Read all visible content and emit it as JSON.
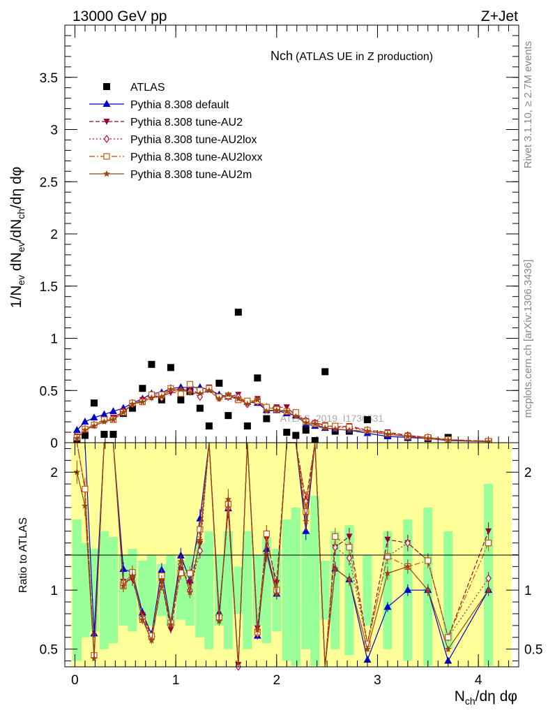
{
  "header": {
    "left": "13000 GeV pp",
    "right": "Z+Jet"
  },
  "side_labels": {
    "rivet": "Rivet 3.1.10, ≥ 2.7M events",
    "mcplots": "mcplots.cern.ch [arXiv:1306.3436]"
  },
  "chart_data": {
    "type": "scatter",
    "title": "Nch",
    "subtitle": "(ATLAS UE in Z production)",
    "xlabel": "N_ch/dη dφ",
    "ylabel": "1/N_ev dN_ev/dN_ch/dη dφ",
    "ratio_ylabel": "Ratio to ATLAS",
    "watermark": "ATLAS_2019_I1736531",
    "xlim": [
      -0.1,
      4.4
    ],
    "ylim": [
      0,
      4.0
    ],
    "ratio_ylim": [
      0.35,
      2.25
    ],
    "x_ticks": [
      0,
      1,
      2,
      3,
      4
    ],
    "y_ticks": [
      0,
      0.5,
      1,
      1.5,
      2,
      2.5,
      3,
      3.5
    ],
    "y_tick_labels": [
      "0",
      "0.5",
      "1",
      "1.5",
      "2",
      "2.5",
      "3",
      "3.5"
    ],
    "ratio_ticks": [
      0.5,
      1,
      2
    ],
    "ratio_tick_labels": [
      "0.5",
      "1",
      "2"
    ],
    "x": [
      0.02,
      0.1,
      0.19,
      0.29,
      0.38,
      0.48,
      0.57,
      0.67,
      0.76,
      0.86,
      0.95,
      1.05,
      1.14,
      1.24,
      1.33,
      1.43,
      1.52,
      1.62,
      1.71,
      1.81,
      1.9,
      2.0,
      2.1,
      2.19,
      2.29,
      2.38,
      2.48,
      2.58,
      2.72,
      2.9,
      3.1,
      3.3,
      3.5,
      3.7,
      4.1
    ],
    "series": [
      {
        "name": "ATLAS",
        "color": "#000000",
        "marker": "square",
        "dash": "none",
        "values": [
          0.02,
          0.07,
          0.38,
          0.08,
          0.08,
          0.28,
          0.33,
          0.52,
          0.75,
          0.41,
          0.72,
          0.41,
          0.49,
          0.33,
          0.16,
          0.57,
          0.26,
          1.25,
          0.16,
          0.62,
          0.23,
          0.32,
          0.1,
          0.07,
          0.12,
          0.02,
          0.68,
          0.11,
          0.11,
          0.22,
          0.07,
          0.05,
          0.04,
          0.05,
          0.01
        ]
      },
      {
        "name": "Pythia 8.308 default",
        "color": "#0000cc",
        "marker": "triangle",
        "dash": "none",
        "values": [
          0.12,
          0.2,
          0.24,
          0.27,
          0.3,
          0.33,
          0.38,
          0.42,
          0.47,
          0.48,
          0.52,
          0.53,
          0.53,
          0.53,
          0.51,
          0.46,
          0.44,
          0.42,
          0.39,
          0.38,
          0.31,
          0.31,
          0.28,
          0.26,
          0.18,
          0.16,
          0.14,
          0.13,
          0.12,
          0.09,
          0.06,
          0.05,
          0.04,
          0.02,
          0.01
        ]
      },
      {
        "name": "Pythia 8.308 tune-AU2",
        "color": "#990033",
        "marker": "triangle-down",
        "dash": "6,3",
        "values": [
          0.06,
          0.13,
          0.17,
          0.22,
          0.24,
          0.3,
          0.36,
          0.41,
          0.45,
          0.44,
          0.48,
          0.48,
          0.52,
          0.46,
          0.53,
          0.44,
          0.44,
          0.46,
          0.37,
          0.42,
          0.33,
          0.34,
          0.34,
          0.26,
          0.21,
          0.19,
          0.17,
          0.15,
          0.16,
          0.12,
          0.1,
          0.07,
          0.05,
          0.03,
          0.015
        ]
      },
      {
        "name": "Pythia 8.308 tune-AU2lox",
        "color": "#bb1133",
        "marker": "diamond-open",
        "dash": "2,3",
        "values": [
          0.05,
          0.13,
          0.17,
          0.22,
          0.23,
          0.3,
          0.37,
          0.4,
          0.44,
          0.43,
          0.51,
          0.5,
          0.49,
          0.44,
          0.52,
          0.43,
          0.44,
          0.44,
          0.37,
          0.39,
          0.34,
          0.32,
          0.3,
          0.27,
          0.21,
          0.19,
          0.16,
          0.15,
          0.14,
          0.12,
          0.09,
          0.07,
          0.05,
          0.03,
          0.011
        ]
      },
      {
        "name": "Pythia 8.308 tune-AU2loxx",
        "color": "#cc5500",
        "marker": "square-open",
        "dash": "8,3,2,3",
        "values": [
          0.05,
          0.13,
          0.17,
          0.22,
          0.22,
          0.29,
          0.38,
          0.39,
          0.46,
          0.46,
          0.52,
          0.47,
          0.56,
          0.5,
          0.52,
          0.44,
          0.45,
          0.41,
          0.4,
          0.4,
          0.34,
          0.32,
          0.3,
          0.29,
          0.2,
          0.18,
          0.16,
          0.16,
          0.15,
          0.12,
          0.09,
          0.06,
          0.05,
          0.03,
          0.014
        ]
      },
      {
        "name": "Pythia 8.308 tune-AU2m",
        "color": "#994411",
        "marker": "star",
        "dash": "none",
        "values": [
          0.04,
          0.12,
          0.16,
          0.2,
          0.22,
          0.29,
          0.37,
          0.39,
          0.43,
          0.44,
          0.51,
          0.51,
          0.48,
          0.47,
          0.5,
          0.42,
          0.46,
          0.42,
          0.37,
          0.41,
          0.3,
          0.31,
          0.3,
          0.25,
          0.19,
          0.18,
          0.14,
          0.13,
          0.12,
          0.11,
          0.08,
          0.06,
          0.04,
          0.025,
          0.01
        ]
      }
    ]
  }
}
